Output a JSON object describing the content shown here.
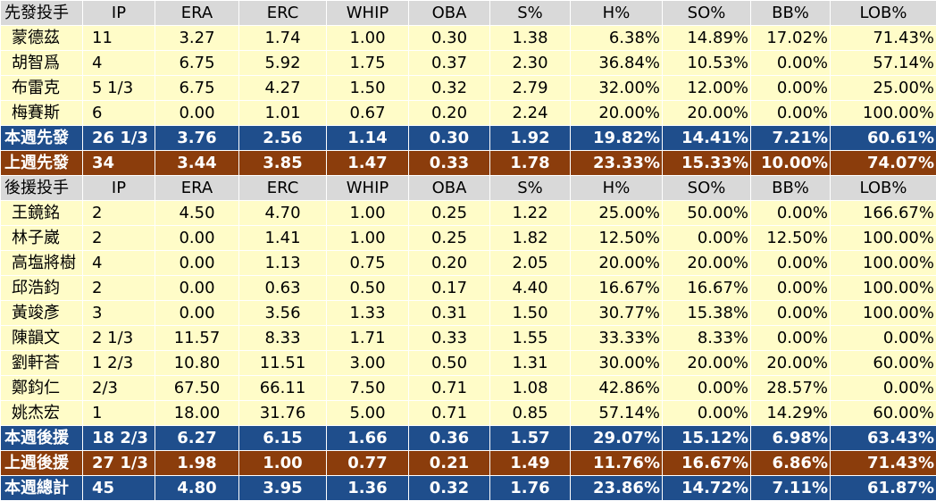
{
  "colors": {
    "header_bg": "#d9d9d9",
    "row_bg": "#fffcc8",
    "blue_total": "#1f4e8c",
    "brown_total": "#8b3d0c"
  },
  "starters": {
    "header": [
      "先發投手",
      "IP",
      "ERA",
      "ERC",
      "WHIP",
      "OBA",
      "S%",
      "H%",
      "SO%",
      "BB%",
      "LOB%"
    ],
    "rows": [
      [
        "蒙德茲",
        "11",
        "3.27",
        "1.74",
        "1.00",
        "0.30",
        "1.38",
        "6.38%",
        "14.89%",
        "17.02%",
        "71.43%"
      ],
      [
        "胡智爲",
        "4",
        "6.75",
        "5.92",
        "1.75",
        "0.37",
        "2.30",
        "36.84%",
        "10.53%",
        "0.00%",
        "57.14%"
      ],
      [
        "布雷克",
        "5 1/3",
        "6.75",
        "4.27",
        "1.50",
        "0.32",
        "2.79",
        "32.00%",
        "12.00%",
        "0.00%",
        "25.00%"
      ],
      [
        "梅賽斯",
        "6",
        "0.00",
        "1.01",
        "0.67",
        "0.20",
        "2.24",
        "20.00%",
        "20.00%",
        "0.00%",
        "100.00%"
      ]
    ],
    "this_week": [
      "本週先發",
      "26 1/3",
      "3.76",
      "2.56",
      "1.14",
      "0.30",
      "1.92",
      "19.82%",
      "14.41%",
      "7.21%",
      "60.61%"
    ],
    "last_week": [
      "上週先發",
      "34",
      "3.44",
      "3.85",
      "1.47",
      "0.33",
      "1.78",
      "23.33%",
      "15.33%",
      "10.00%",
      "74.07%"
    ]
  },
  "relievers": {
    "header": [
      "後援投手",
      "IP",
      "ERA",
      "ERC",
      "WHIP",
      "OBA",
      "S%",
      "H%",
      "SO%",
      "BB%",
      "LOB%"
    ],
    "rows": [
      [
        "王鏡銘",
        "2",
        "4.50",
        "4.70",
        "1.00",
        "0.25",
        "1.22",
        "25.00%",
        "50.00%",
        "0.00%",
        "166.67%"
      ],
      [
        "林子崴",
        "2",
        "0.00",
        "1.41",
        "1.00",
        "0.25",
        "1.82",
        "12.50%",
        "0.00%",
        "12.50%",
        "100.00%"
      ],
      [
        "高塩將樹",
        "4",
        "0.00",
        "1.13",
        "0.75",
        "0.20",
        "2.05",
        "20.00%",
        "20.00%",
        "0.00%",
        "100.00%"
      ],
      [
        "邱浩鈞",
        "2",
        "0.00",
        "0.63",
        "0.50",
        "0.17",
        "4.40",
        "16.67%",
        "16.67%",
        "0.00%",
        "100.00%"
      ],
      [
        "黃竣彥",
        "3",
        "0.00",
        "3.56",
        "1.33",
        "0.31",
        "1.50",
        "30.77%",
        "15.38%",
        "0.00%",
        "100.00%"
      ],
      [
        "陳韻文",
        "2 1/3",
        "11.57",
        "8.33",
        "1.71",
        "0.33",
        "1.55",
        "33.33%",
        "8.33%",
        "0.00%",
        "0.00%"
      ],
      [
        "劉軒荅",
        "1 2/3",
        "10.80",
        "11.51",
        "3.00",
        "0.50",
        "1.31",
        "30.00%",
        "20.00%",
        "20.00%",
        "60.00%"
      ],
      [
        "鄭鈞仁",
        "2/3",
        "67.50",
        "66.11",
        "7.50",
        "0.71",
        "1.08",
        "42.86%",
        "0.00%",
        "28.57%",
        "0.00%"
      ],
      [
        "姚杰宏",
        "1",
        "18.00",
        "31.76",
        "5.00",
        "0.71",
        "0.85",
        "57.14%",
        "0.00%",
        "14.29%",
        "60.00%"
      ]
    ],
    "this_week": [
      "本週後援",
      "18 2/3",
      "6.27",
      "6.15",
      "1.66",
      "0.36",
      "1.57",
      "29.07%",
      "15.12%",
      "6.98%",
      "63.43%"
    ],
    "last_week": [
      "上週後援",
      "27 1/3",
      "1.98",
      "1.00",
      "0.77",
      "0.21",
      "1.49",
      "11.76%",
      "16.67%",
      "6.86%",
      "71.43%"
    ]
  },
  "weekly_total": [
    "本週總計",
    "45",
    "4.80",
    "3.95",
    "1.36",
    "0.32",
    "1.76",
    "23.86%",
    "14.72%",
    "7.11%",
    "61.87%"
  ]
}
